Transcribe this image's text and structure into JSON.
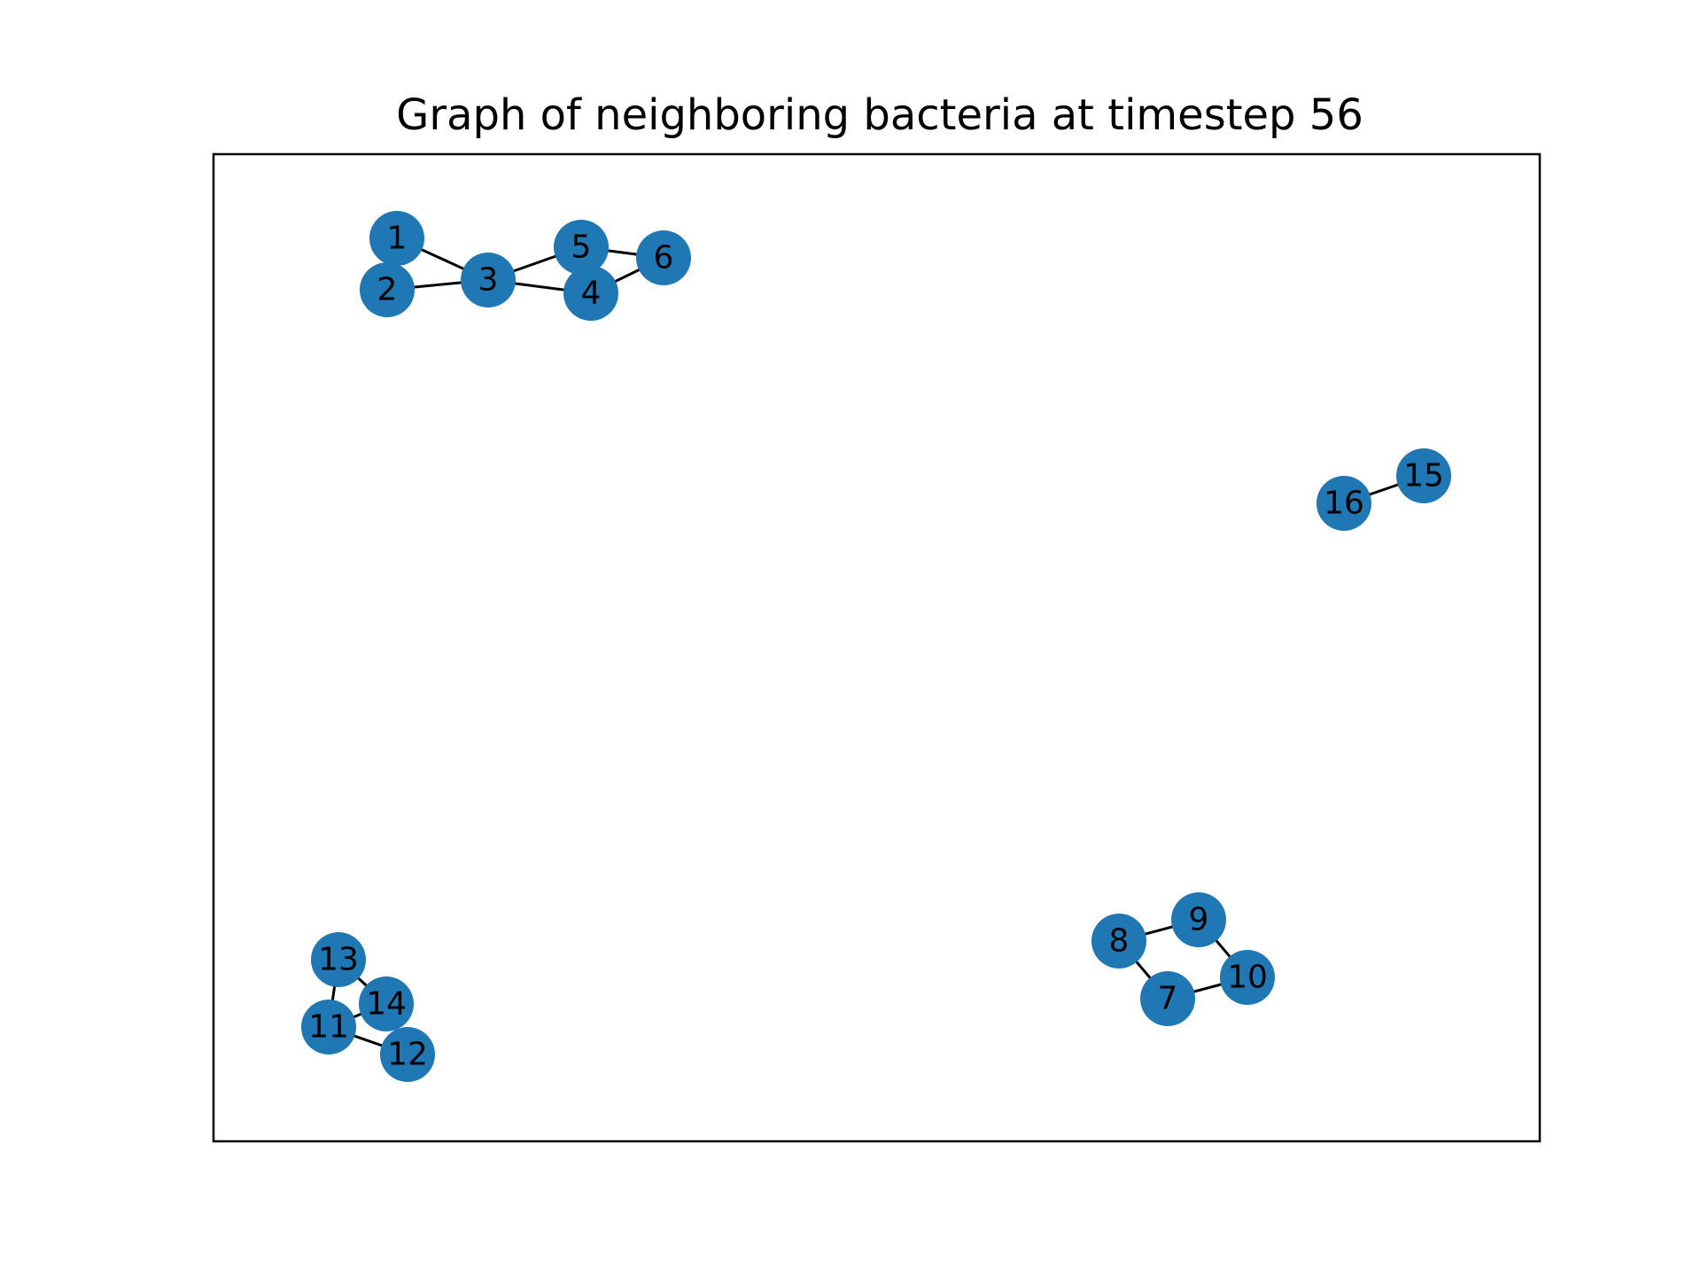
{
  "figure": {
    "title": "Graph of neighboring bacteria at timestep 56"
  },
  "style": {
    "node_color": "#1f77b4",
    "edge_color": "#000000",
    "label_color": "#000000",
    "frame_color": "#000000",
    "background": "#ffffff"
  },
  "graph": {
    "nodes": [
      {
        "id": "1",
        "label": "1"
      },
      {
        "id": "2",
        "label": "2"
      },
      {
        "id": "3",
        "label": "3"
      },
      {
        "id": "4",
        "label": "4"
      },
      {
        "id": "5",
        "label": "5"
      },
      {
        "id": "6",
        "label": "6"
      },
      {
        "id": "7",
        "label": "7"
      },
      {
        "id": "8",
        "label": "8"
      },
      {
        "id": "9",
        "label": "9"
      },
      {
        "id": "10",
        "label": "10"
      },
      {
        "id": "11",
        "label": "11"
      },
      {
        "id": "12",
        "label": "12"
      },
      {
        "id": "13",
        "label": "13"
      },
      {
        "id": "14",
        "label": "14"
      },
      {
        "id": "15",
        "label": "15"
      },
      {
        "id": "16",
        "label": "16"
      }
    ],
    "edges": [
      [
        "1",
        "3"
      ],
      [
        "2",
        "3"
      ],
      [
        "3",
        "5"
      ],
      [
        "3",
        "4"
      ],
      [
        "5",
        "6"
      ],
      [
        "4",
        "6"
      ],
      [
        "8",
        "9"
      ],
      [
        "9",
        "10"
      ],
      [
        "8",
        "7"
      ],
      [
        "7",
        "10"
      ],
      [
        "13",
        "14"
      ],
      [
        "13",
        "11"
      ],
      [
        "11",
        "14"
      ],
      [
        "11",
        "12"
      ],
      [
        "16",
        "15"
      ]
    ]
  }
}
